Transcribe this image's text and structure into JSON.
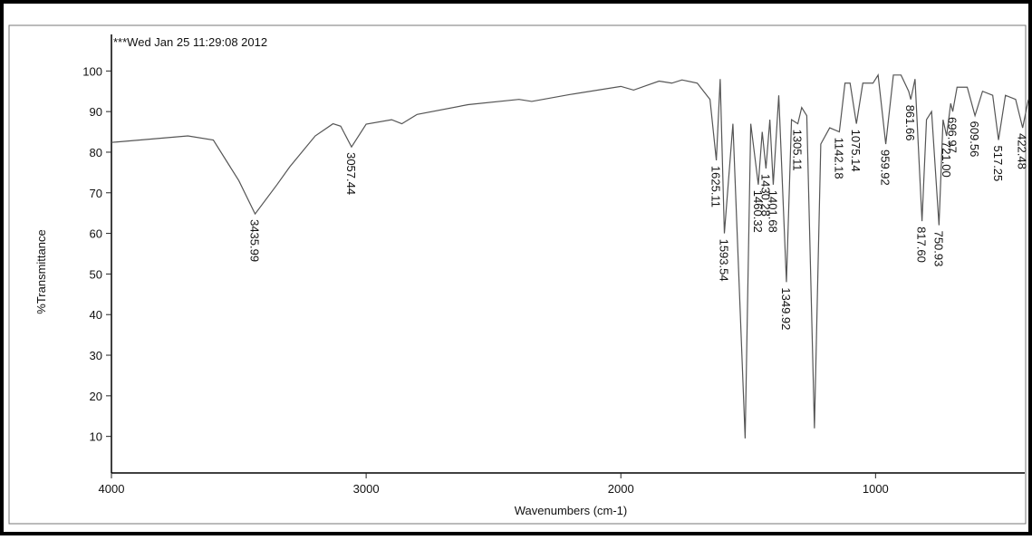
{
  "chart_data": {
    "type": "line",
    "annotation": "***Wed Jan 25 11:29:08 2012",
    "x_label": "Wavenumbers (cm-1)",
    "y_label": "%Transmittance",
    "xlim": [
      4000,
      400
    ],
    "ylim": [
      1,
      109
    ],
    "xticks": [
      4000,
      3000,
      2000,
      1000
    ],
    "yticks": [
      10,
      20,
      30,
      40,
      50,
      60,
      70,
      80,
      90,
      100
    ],
    "color": "#555555",
    "x": [
      4000,
      3700,
      3600,
      3500,
      3435.99,
      3350,
      3300,
      3200,
      3130,
      3100,
      3057.44,
      3000,
      2900,
      2860,
      2800,
      2600,
      2400,
      2350,
      2200,
      2000,
      1950,
      1900,
      1850,
      1800,
      1760,
      1700,
      1650,
      1625.11,
      1610,
      1593.54,
      1560,
      1512,
      1490,
      1460.32,
      1445,
      1430.28,
      1415,
      1401.68,
      1380,
      1349.92,
      1330,
      1305.11,
      1290,
      1270,
      1240,
      1215,
      1180,
      1142.18,
      1120,
      1100,
      1075.14,
      1050,
      1010,
      990,
      959.92,
      930,
      900,
      870,
      861.66,
      845,
      817.6,
      800,
      780,
      750.93,
      735,
      721,
      705,
      696.97,
      680,
      640,
      609.56,
      580,
      540,
      517.25,
      490,
      450,
      422.48,
      400
    ],
    "values": [
      82.4,
      84,
      83,
      73,
      64.8,
      72,
      76.4,
      84,
      87,
      86.4,
      81.3,
      86.9,
      88,
      87,
      89.3,
      91.7,
      93,
      92.5,
      94.2,
      96.2,
      95.3,
      96.4,
      97.5,
      97,
      97.8,
      97,
      93,
      78,
      98,
      60,
      87,
      9.5,
      87,
      72,
      85,
      76,
      88,
      72,
      94,
      48,
      88,
      87,
      91,
      89,
      12,
      82,
      86,
      85,
      97,
      97,
      87,
      97,
      97,
      99,
      82,
      99,
      99,
      95,
      93,
      98,
      63,
      88,
      90,
      62,
      88,
      84,
      92,
      90,
      96,
      96,
      89,
      95,
      94,
      83,
      94,
      93,
      86,
      93
    ],
    "peaks": [
      {
        "x": 3435.99
      },
      {
        "x": 3057.44
      },
      {
        "x": 1625.11
      },
      {
        "x": 1593.54
      },
      {
        "x": 1460.32
      },
      {
        "x": 1430.28
      },
      {
        "x": 1401.68
      },
      {
        "x": 1349.92
      },
      {
        "x": 1305.11
      },
      {
        "x": 1142.18
      },
      {
        "x": 1075.14
      },
      {
        "x": 959.92
      },
      {
        "x": 861.66
      },
      {
        "x": 817.6,
        "label": "817.60"
      },
      {
        "x": 750.93
      },
      {
        "x": 721,
        "label": "721.00"
      },
      {
        "x": 696.97
      },
      {
        "x": 609.56
      },
      {
        "x": 517.25
      },
      {
        "x": 422.48
      }
    ]
  }
}
